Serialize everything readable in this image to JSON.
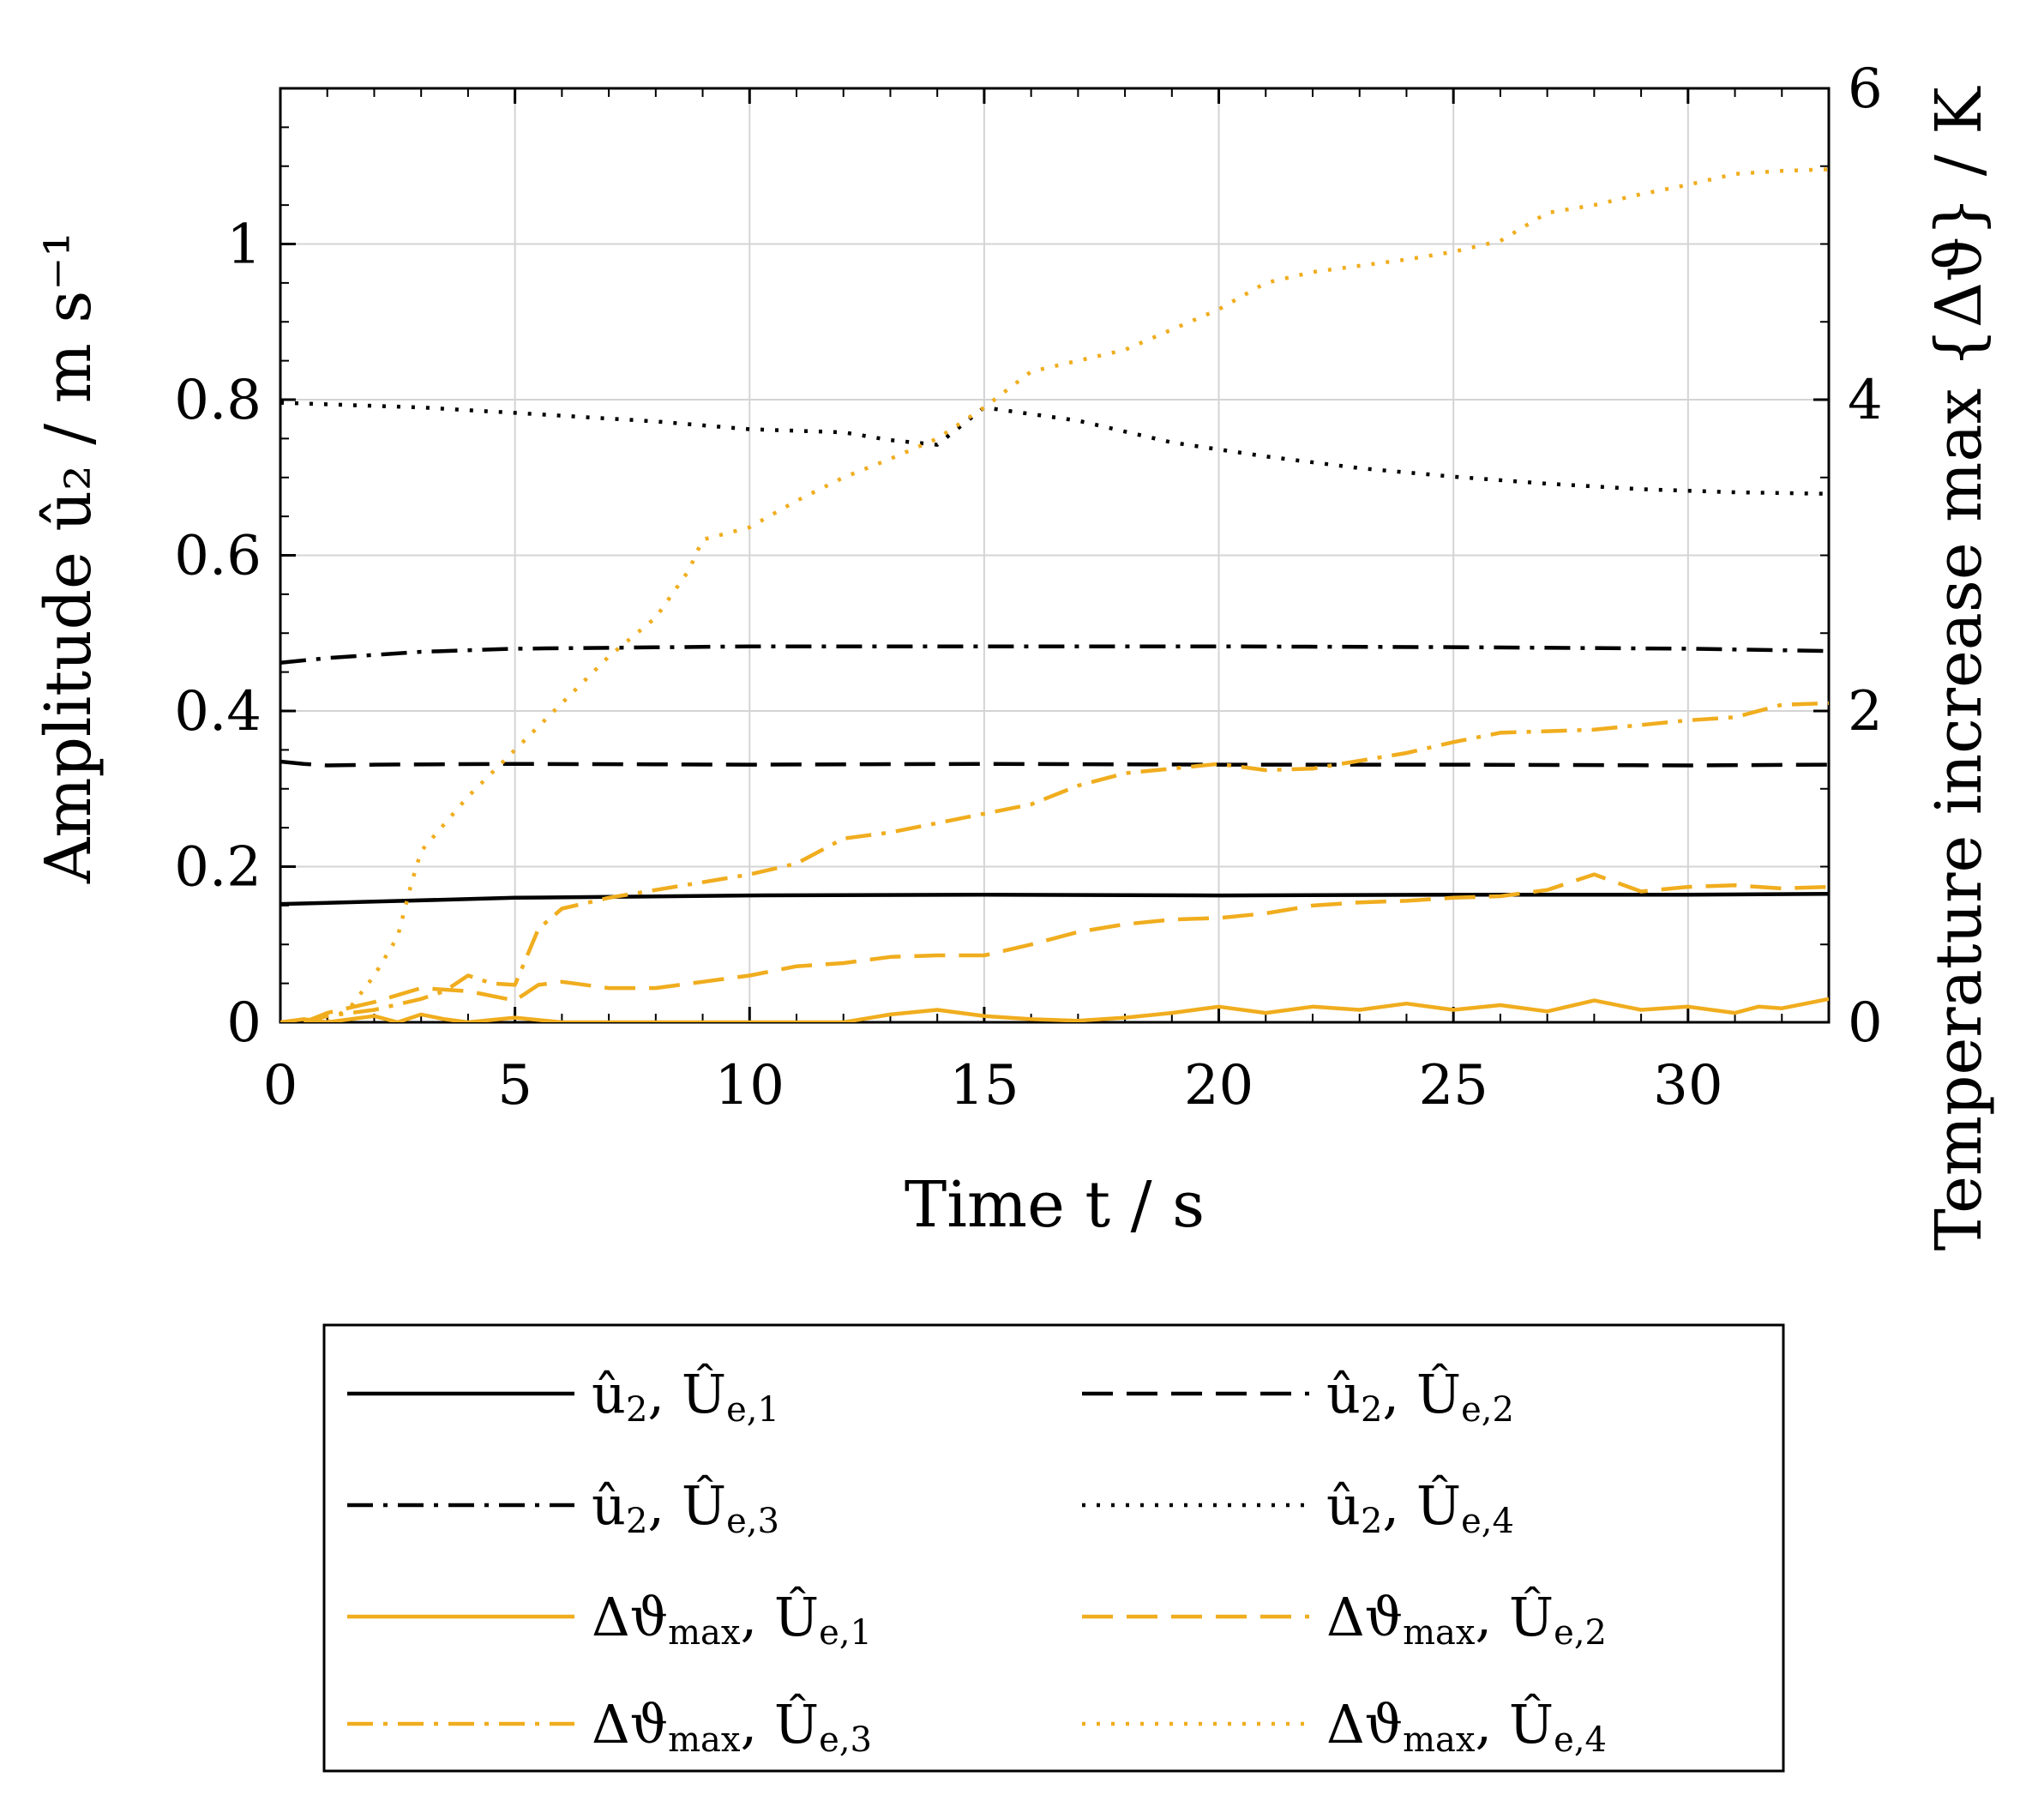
{
  "chart_data": {
    "type": "line",
    "xlabel": "Time t / s",
    "ylabel": "Amplitude û₂ / m s⁻¹",
    "y2label": "Temperature increase max {Δϑ} / K",
    "xlim": [
      0,
      33
    ],
    "ylim": [
      0,
      1.2
    ],
    "y2lim": [
      0,
      6
    ],
    "xticks": [
      0,
      5,
      10,
      15,
      20,
      25,
      30
    ],
    "yticks": [
      0,
      0.2,
      0.4,
      0.6,
      0.8,
      1
    ],
    "yticklabels": [
      "0",
      "0.2",
      "0.4",
      "0.6",
      "0.8",
      "1"
    ],
    "y2ticks": [
      0,
      2,
      4,
      6
    ],
    "grid": true,
    "legend_position": "bottom",
    "colors": {
      "black": "#000000",
      "orange": "#f0ad1e",
      "grid": "#d4d4d4"
    },
    "series": [
      {
        "name": "û2, Ûe,1",
        "main": "û",
        "sub1": "2",
        "sep": ", ",
        "main2": "Û",
        "sub2": "e,1",
        "axis": "left",
        "color": "black",
        "dash": "solid",
        "points": [
          [
            0,
            0.152
          ],
          [
            2,
            0.155
          ],
          [
            5,
            0.16
          ],
          [
            10,
            0.163
          ],
          [
            15,
            0.164
          ],
          [
            20,
            0.163
          ],
          [
            25,
            0.164
          ],
          [
            30,
            0.164
          ],
          [
            33,
            0.165
          ]
        ]
      },
      {
        "name": "û2, Ûe,2",
        "main": "û",
        "sub1": "2",
        "sep": ", ",
        "main2": "Û",
        "sub2": "e,2",
        "axis": "left",
        "color": "black",
        "dash": "dash",
        "points": [
          [
            0,
            0.335
          ],
          [
            0.5,
            0.332
          ],
          [
            1,
            0.33
          ],
          [
            2,
            0.331
          ],
          [
            5,
            0.332
          ],
          [
            10,
            0.331
          ],
          [
            15,
            0.332
          ],
          [
            20,
            0.331
          ],
          [
            25,
            0.331
          ],
          [
            30,
            0.33
          ],
          [
            33,
            0.331
          ]
        ]
      },
      {
        "name": "û2, Ûe,3",
        "main": "û",
        "sub1": "2",
        "sep": ", ",
        "main2": "Û",
        "sub2": "e,3",
        "axis": "left",
        "color": "black",
        "dash": "dashdot",
        "points": [
          [
            0,
            0.462
          ],
          [
            1,
            0.468
          ],
          [
            3,
            0.476
          ],
          [
            5,
            0.48
          ],
          [
            10,
            0.483
          ],
          [
            15,
            0.483
          ],
          [
            20,
            0.483
          ],
          [
            25,
            0.482
          ],
          [
            30,
            0.48
          ],
          [
            33,
            0.477
          ]
        ]
      },
      {
        "name": "û2, Ûe,4",
        "main": "û",
        "sub1": "2",
        "sep": ", ",
        "main2": "Û",
        "sub2": "e,4",
        "axis": "left",
        "color": "black",
        "dash": "dot",
        "points": [
          [
            0,
            0.796
          ],
          [
            3,
            0.79
          ],
          [
            5,
            0.783
          ],
          [
            8,
            0.772
          ],
          [
            10,
            0.762
          ],
          [
            12,
            0.758
          ],
          [
            13,
            0.748
          ],
          [
            14,
            0.742
          ],
          [
            15,
            0.79
          ],
          [
            17,
            0.773
          ],
          [
            19,
            0.745
          ],
          [
            21,
            0.727
          ],
          [
            23,
            0.712
          ],
          [
            25,
            0.701
          ],
          [
            27,
            0.692
          ],
          [
            29,
            0.685
          ],
          [
            31,
            0.681
          ],
          [
            33,
            0.679
          ]
        ]
      },
      {
        "name": "Δϑmax, Ûe,1",
        "main": "Δϑ",
        "sub1": "max",
        "sep": ", ",
        "main2": "Û",
        "sub2": "e,1",
        "axis": "right",
        "color": "orange",
        "dash": "solid",
        "points": [
          [
            0,
            0
          ],
          [
            0.5,
            0.02
          ],
          [
            1,
            0
          ],
          [
            2,
            0.04
          ],
          [
            2.5,
            0
          ],
          [
            3,
            0.05
          ],
          [
            3.5,
            0.02
          ],
          [
            4,
            0
          ],
          [
            5,
            0.03
          ],
          [
            6,
            0
          ],
          [
            8,
            0
          ],
          [
            10,
            0
          ],
          [
            12,
            0
          ],
          [
            13,
            0.05
          ],
          [
            14,
            0.08
          ],
          [
            15,
            0.04
          ],
          [
            16,
            0.02
          ],
          [
            17,
            0.01
          ],
          [
            18,
            0.03
          ],
          [
            19,
            0.06
          ],
          [
            20,
            0.1
          ],
          [
            21,
            0.06
          ],
          [
            22,
            0.1
          ],
          [
            23,
            0.08
          ],
          [
            24,
            0.12
          ],
          [
            25,
            0.08
          ],
          [
            26,
            0.11
          ],
          [
            27,
            0.07
          ],
          [
            28,
            0.14
          ],
          [
            29,
            0.08
          ],
          [
            30,
            0.1
          ],
          [
            31,
            0.06
          ],
          [
            31.5,
            0.1
          ],
          [
            32,
            0.09
          ],
          [
            33,
            0.15
          ]
        ]
      },
      {
        "name": "Δϑmax, Ûe,2",
        "main": "Δϑ",
        "sub1": "max",
        "sep": ", ",
        "main2": "Û",
        "sub2": "e,2",
        "axis": "right",
        "color": "orange",
        "dash": "dash",
        "points": [
          [
            0.5,
            0
          ],
          [
            1,
            0.06
          ],
          [
            2,
            0.13
          ],
          [
            3,
            0.22
          ],
          [
            4,
            0.2
          ],
          [
            5,
            0.14
          ],
          [
            5.5,
            0.24
          ],
          [
            6,
            0.26
          ],
          [
            7,
            0.22
          ],
          [
            8,
            0.22
          ],
          [
            9,
            0.26
          ],
          [
            10,
            0.3
          ],
          [
            11,
            0.36
          ],
          [
            12,
            0.38
          ],
          [
            13,
            0.42
          ],
          [
            14,
            0.43
          ],
          [
            15,
            0.43
          ],
          [
            16,
            0.5
          ],
          [
            17,
            0.58
          ],
          [
            18,
            0.63
          ],
          [
            19,
            0.66
          ],
          [
            20,
            0.67
          ],
          [
            21,
            0.7
          ],
          [
            22,
            0.75
          ],
          [
            23,
            0.77
          ],
          [
            24,
            0.78
          ],
          [
            25,
            0.8
          ],
          [
            26,
            0.81
          ],
          [
            27,
            0.85
          ],
          [
            28,
            0.95
          ],
          [
            29,
            0.84
          ],
          [
            30,
            0.87
          ],
          [
            31,
            0.88
          ],
          [
            32,
            0.86
          ],
          [
            33,
            0.87
          ]
        ]
      },
      {
        "name": "Δϑmax, Ûe,3",
        "main": "Δϑ",
        "sub1": "max",
        "sep": ", ",
        "main2": "Û",
        "sub2": "e,3",
        "axis": "right",
        "color": "orange",
        "dash": "dashdot",
        "points": [
          [
            0.5,
            0
          ],
          [
            1,
            0.04
          ],
          [
            2,
            0.08
          ],
          [
            3,
            0.15
          ],
          [
            3.5,
            0.2
          ],
          [
            4,
            0.3
          ],
          [
            4.5,
            0.25
          ],
          [
            5,
            0.24
          ],
          [
            5.5,
            0.6
          ],
          [
            6,
            0.73
          ],
          [
            7,
            0.8
          ],
          [
            8,
            0.85
          ],
          [
            9,
            0.9
          ],
          [
            10,
            0.95
          ],
          [
            11,
            1.02
          ],
          [
            12,
            1.18
          ],
          [
            13,
            1.22
          ],
          [
            14,
            1.28
          ],
          [
            15,
            1.34
          ],
          [
            16,
            1.4
          ],
          [
            17,
            1.52
          ],
          [
            18,
            1.6
          ],
          [
            19,
            1.63
          ],
          [
            20,
            1.66
          ],
          [
            21,
            1.62
          ],
          [
            22,
            1.63
          ],
          [
            23,
            1.68
          ],
          [
            24,
            1.73
          ],
          [
            25,
            1.8
          ],
          [
            26,
            1.86
          ],
          [
            27,
            1.87
          ],
          [
            28,
            1.88
          ],
          [
            29,
            1.91
          ],
          [
            30,
            1.94
          ],
          [
            31,
            1.96
          ],
          [
            32,
            2.04
          ],
          [
            33,
            2.05
          ]
        ]
      },
      {
        "name": "Δϑmax, Ûe,4",
        "main": "Δϑ",
        "sub1": "max",
        "sep": ", ",
        "main2": "Û",
        "sub2": "e,4",
        "axis": "right",
        "color": "orange",
        "dash": "dot",
        "points": [
          [
            1,
            0
          ],
          [
            1.5,
            0.1
          ],
          [
            2,
            0.3
          ],
          [
            2.5,
            0.55
          ],
          [
            2.8,
            0.9
          ],
          [
            3,
            1.1
          ],
          [
            4,
            1.45
          ],
          [
            5,
            1.75
          ],
          [
            6,
            2.05
          ],
          [
            7,
            2.35
          ],
          [
            8,
            2.6
          ],
          [
            8.7,
            2.9
          ],
          [
            9,
            3.1
          ],
          [
            10,
            3.18
          ],
          [
            11,
            3.35
          ],
          [
            12,
            3.5
          ],
          [
            13,
            3.62
          ],
          [
            14,
            3.75
          ],
          [
            15,
            3.95
          ],
          [
            16,
            4.18
          ],
          [
            17,
            4.25
          ],
          [
            18,
            4.32
          ],
          [
            19,
            4.45
          ],
          [
            20,
            4.58
          ],
          [
            21,
            4.75
          ],
          [
            22,
            4.82
          ],
          [
            23,
            4.86
          ],
          [
            24,
            4.9
          ],
          [
            25,
            4.95
          ],
          [
            26,
            5.02
          ],
          [
            27,
            5.2
          ],
          [
            28,
            5.25
          ],
          [
            29,
            5.32
          ],
          [
            30,
            5.38
          ],
          [
            31,
            5.45
          ],
          [
            32,
            5.47
          ],
          [
            33,
            5.48
          ]
        ]
      }
    ]
  }
}
